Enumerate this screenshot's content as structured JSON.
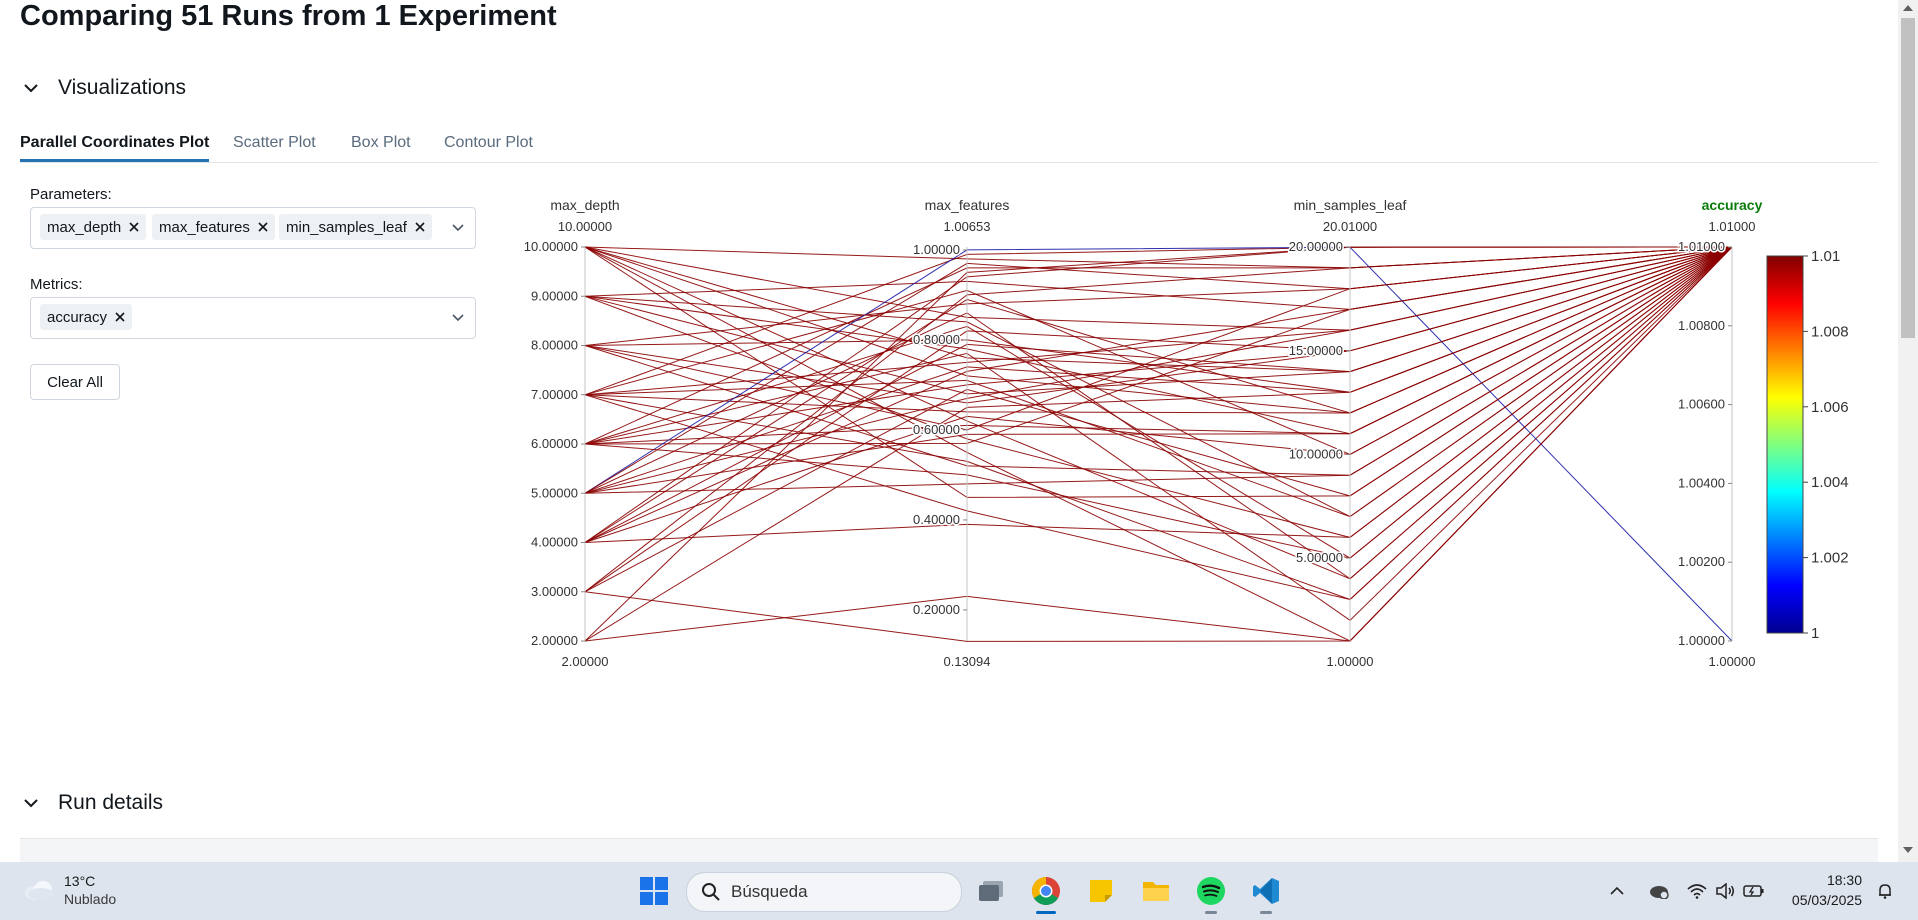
{
  "page": {
    "title": "Comparing 51 Runs from 1 Experiment"
  },
  "sections": {
    "visualizations": "Visualizations",
    "run_details": "Run details"
  },
  "tabs": [
    "Parallel Coordinates Plot",
    "Scatter Plot",
    "Box Plot",
    "Contour Plot"
  ],
  "active_tab": "Parallel Coordinates Plot",
  "controls": {
    "parameters_label": "Parameters:",
    "parameters": [
      "max_depth",
      "max_features",
      "min_samples_leaf"
    ],
    "metrics_label": "Metrics:",
    "metrics": [
      "accuracy"
    ],
    "clear_all": "Clear All"
  },
  "chart_data": {
    "type": "parallel_coordinates",
    "line_color": "#8b0000",
    "highlight_color": "#1a1aa6",
    "axes": [
      {
        "name": "max_depth",
        "max_label": "10.00000",
        "min_label": "2.00000",
        "min": 2,
        "max": 10,
        "ticks": [
          "10.00000",
          "9.00000",
          "8.00000",
          "7.00000",
          "6.00000",
          "5.00000",
          "4.00000",
          "3.00000",
          "2.00000"
        ]
      },
      {
        "name": "max_features",
        "max_label": "1.00653",
        "min_label": "0.13094",
        "min": 0.13094,
        "max": 1.00653,
        "ticks": [
          "1.00000",
          "0.80000",
          "0.60000",
          "0.40000",
          "0.20000"
        ]
      },
      {
        "name": "min_samples_leaf",
        "max_label": "20.01000",
        "min_label": "1.00000",
        "min": 1,
        "max": 20.01,
        "ticks": [
          "20.00000",
          "15.00000",
          "10.00000",
          "5.00000"
        ]
      },
      {
        "name": "accuracy",
        "max_label": "1.01000",
        "min_label": "1.00000",
        "min": 1,
        "max": 1.01,
        "highlight": true,
        "ticks": [
          "1.01000",
          "1.00800",
          "1.00600",
          "1.00400",
          "1.00200",
          "1.00000"
        ]
      }
    ],
    "colorbar": {
      "min": 1,
      "max": 1.01,
      "ticks": [
        "1.01",
        "1.008",
        "1.006",
        "1.004",
        "1.002",
        "1"
      ]
    },
    "runs": [
      {
        "max_depth": 10,
        "max_features": 0.98,
        "min_samples_leaf": 19,
        "accuracy": 1.01
      },
      {
        "max_depth": 10,
        "max_features": 0.72,
        "min_samples_leaf": 12,
        "accuracy": 1.01
      },
      {
        "max_depth": 10,
        "max_features": 0.62,
        "min_samples_leaf": 4,
        "accuracy": 1.01
      },
      {
        "max_depth": 10,
        "max_features": 0.85,
        "min_samples_leaf": 16,
        "accuracy": 1.01
      },
      {
        "max_depth": 10,
        "max_features": 0.55,
        "min_samples_leaf": 1,
        "accuracy": 1.01
      },
      {
        "max_depth": 10,
        "max_features": 0.45,
        "min_samples_leaf": 8,
        "accuracy": 1.01
      },
      {
        "max_depth": 9,
        "max_features": 0.93,
        "min_samples_leaf": 17,
        "accuracy": 1.01
      },
      {
        "max_depth": 9,
        "max_features": 0.68,
        "min_samples_leaf": 14,
        "accuracy": 1.01
      },
      {
        "max_depth": 9,
        "max_features": 0.58,
        "min_samples_leaf": 6,
        "accuracy": 1.01
      },
      {
        "max_depth": 9,
        "max_features": 0.78,
        "min_samples_leaf": 11,
        "accuracy": 1.01
      },
      {
        "max_depth": 8,
        "max_features": 0.88,
        "min_samples_leaf": 18,
        "accuracy": 1.01
      },
      {
        "max_depth": 8,
        "max_features": 0.66,
        "min_samples_leaf": 15,
        "accuracy": 1.01
      },
      {
        "max_depth": 8,
        "max_features": 0.52,
        "min_samples_leaf": 9,
        "accuracy": 1.01
      },
      {
        "max_depth": 8,
        "max_features": 0.8,
        "min_samples_leaf": 13,
        "accuracy": 1.01
      },
      {
        "max_depth": 7,
        "max_features": 0.99,
        "min_samples_leaf": 20,
        "accuracy": 1.01
      },
      {
        "max_depth": 7,
        "max_features": 0.75,
        "min_samples_leaf": 16,
        "accuracy": 1.01
      },
      {
        "max_depth": 7,
        "max_features": 0.64,
        "min_samples_leaf": 12,
        "accuracy": 1.01
      },
      {
        "max_depth": 7,
        "max_features": 0.71,
        "min_samples_leaf": 7,
        "accuracy": 1.01
      },
      {
        "max_depth": 7,
        "max_features": 0.53,
        "min_samples_leaf": 3,
        "accuracy": 1.01
      },
      {
        "max_depth": 7,
        "max_features": 0.91,
        "min_samples_leaf": 10,
        "accuracy": 1.01
      },
      {
        "max_depth": 6,
        "max_features": 0.96,
        "min_samples_leaf": 19,
        "accuracy": 1.01
      },
      {
        "max_depth": 6,
        "max_features": 0.7,
        "min_samples_leaf": 15,
        "accuracy": 1.01
      },
      {
        "max_depth": 6,
        "max_features": 0.61,
        "min_samples_leaf": 11,
        "accuracy": 1.01
      },
      {
        "max_depth": 6,
        "max_features": 0.83,
        "min_samples_leaf": 5,
        "accuracy": 1.01
      },
      {
        "max_depth": 6,
        "max_features": 0.57,
        "min_samples_leaf": 17,
        "accuracy": 1.01
      },
      {
        "max_depth": 6,
        "max_features": 0.77,
        "min_samples_leaf": 2,
        "accuracy": 1.01
      },
      {
        "max_depth": 5,
        "max_features": 1.0,
        "min_samples_leaf": 20,
        "accuracy": 1.0
      },
      {
        "max_depth": 5,
        "max_features": 0.97,
        "min_samples_leaf": 18,
        "accuracy": 1.01
      },
      {
        "max_depth": 5,
        "max_features": 0.74,
        "min_samples_leaf": 13,
        "accuracy": 1.01
      },
      {
        "max_depth": 5,
        "max_features": 0.48,
        "min_samples_leaf": 9,
        "accuracy": 1.01
      },
      {
        "max_depth": 5,
        "max_features": 0.67,
        "min_samples_leaf": 16,
        "accuracy": 1.01
      },
      {
        "max_depth": 5,
        "max_features": 0.86,
        "min_samples_leaf": 4,
        "accuracy": 1.01
      },
      {
        "max_depth": 5,
        "max_features": 0.59,
        "min_samples_leaf": 11,
        "accuracy": 1.01
      },
      {
        "max_depth": 4,
        "max_features": 0.94,
        "min_samples_leaf": 20,
        "accuracy": 1.01
      },
      {
        "max_depth": 4,
        "max_features": 0.79,
        "min_samples_leaf": 14,
        "accuracy": 1.01
      },
      {
        "max_depth": 4,
        "max_features": 0.63,
        "min_samples_leaf": 10,
        "accuracy": 1.01
      },
      {
        "max_depth": 4,
        "max_features": 0.39,
        "min_samples_leaf": 6,
        "accuracy": 1.01
      },
      {
        "max_depth": 4,
        "max_features": 0.73,
        "min_samples_leaf": 17,
        "accuracy": 1.01
      },
      {
        "max_depth": 4,
        "max_features": 0.89,
        "min_samples_leaf": 12,
        "accuracy": 1.01
      },
      {
        "max_depth": 3,
        "max_features": 0.82,
        "min_samples_leaf": 15,
        "accuracy": 1.01
      },
      {
        "max_depth": 3,
        "max_features": 0.13,
        "min_samples_leaf": 1,
        "accuracy": 1.01
      },
      {
        "max_depth": 3,
        "max_features": 0.69,
        "min_samples_leaf": 8,
        "accuracy": 1.01
      },
      {
        "max_depth": 3,
        "max_features": 0.9,
        "min_samples_leaf": 19,
        "accuracy": 1.01
      },
      {
        "max_depth": 2,
        "max_features": 0.23,
        "min_samples_leaf": 1,
        "accuracy": 1.01
      },
      {
        "max_depth": 2,
        "max_features": 0.65,
        "min_samples_leaf": 13,
        "accuracy": 1.01
      },
      {
        "max_depth": 2,
        "max_features": 0.95,
        "min_samples_leaf": 20,
        "accuracy": 1.01
      },
      {
        "max_depth": 6,
        "max_features": 0.5,
        "min_samples_leaf": 5,
        "accuracy": 1.01
      },
      {
        "max_depth": 7,
        "max_features": 0.42,
        "min_samples_leaf": 3,
        "accuracy": 1.01
      },
      {
        "max_depth": 8,
        "max_features": 0.6,
        "min_samples_leaf": 18,
        "accuracy": 1.01
      },
      {
        "max_depth": 9,
        "max_features": 0.84,
        "min_samples_leaf": 7,
        "accuracy": 1.01
      },
      {
        "max_depth": 10,
        "max_features": 0.76,
        "min_samples_leaf": 14,
        "accuracy": 1.01
      }
    ]
  },
  "taskbar": {
    "weather_temp": "13°C",
    "weather_condition": "Nublado",
    "search_placeholder": "Búsqueda",
    "time": "18:30",
    "date": "05/03/2025",
    "apps": [
      "start-icon",
      "task-view-icon",
      "chrome-icon",
      "sticky-notes-icon",
      "file-explorer-icon",
      "spotify-icon",
      "vscode-icon"
    ]
  },
  "colors": {
    "accent": "#2272b4",
    "highlight_axis_label": "#0a7d0a"
  }
}
